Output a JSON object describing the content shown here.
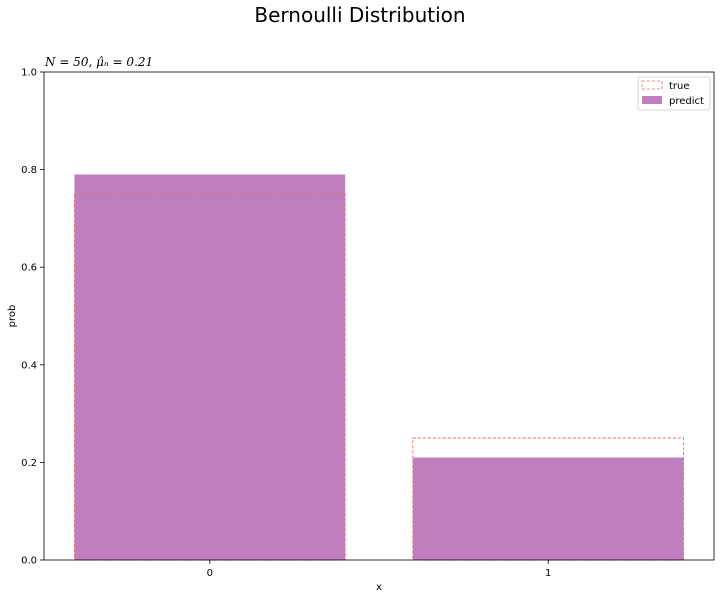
{
  "chart_data": {
    "type": "bar",
    "suptitle": "Bernoulli Distribution",
    "title": "N = 50, μ̂ₙ = 0.21",
    "xlabel": "x",
    "ylabel": "prob",
    "ylim": [
      0,
      1.0
    ],
    "categories": [
      "0",
      "1"
    ],
    "yticks": [
      "0.0",
      "0.2",
      "0.4",
      "0.6",
      "0.8",
      "1.0"
    ],
    "series": [
      {
        "name": "true",
        "values": [
          0.75,
          0.25
        ],
        "style": "dashed-outline",
        "color": "#e86a6a"
      },
      {
        "name": "predict",
        "values": [
          0.79,
          0.21
        ],
        "style": "filled",
        "color": "#bf7fbf"
      }
    ],
    "legend_placement": "top-right",
    "grid": false
  }
}
